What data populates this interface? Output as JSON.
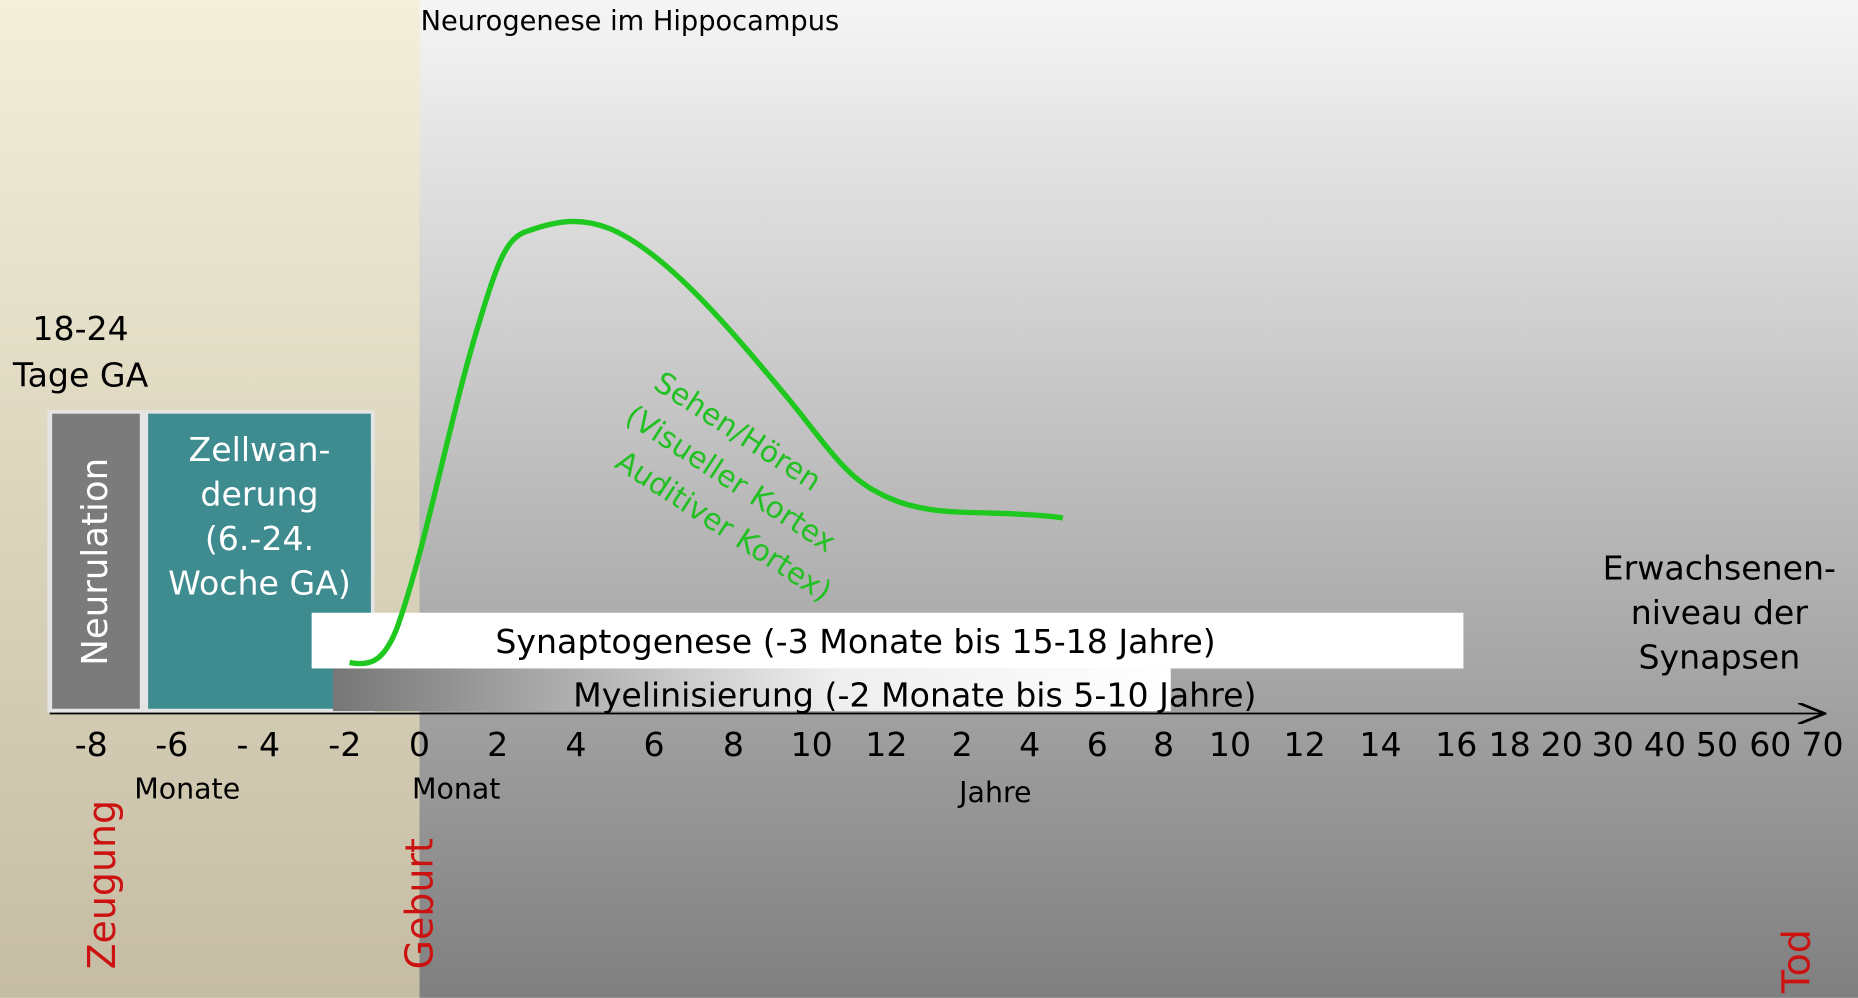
{
  "title": "Neurogenese im Hippocampus",
  "early_label": [
    "18-24",
    "Tage GA"
  ],
  "neurulation": "Neurulation",
  "cell_migration": [
    "Zellwan-",
    "derung",
    "(6.-24.",
    "Woche GA)"
  ],
  "curve_label": [
    "Sehen/Hören",
    "(Visueller Kortex",
    "Auditiver Kortex)"
  ],
  "synaptogenesis": "Synaptogenese (-3 Monate bis 15-18 Jahre)",
  "myelination": "Myelinisierung (-2 Monate bis 5-10 Jahre)",
  "adult_label": [
    "Erwachsenen-",
    "niveau der",
    "Synapsen"
  ],
  "axis_ticks": [
    "-8",
    "-6",
    "- 4",
    "-2",
    "0",
    "2",
    "4",
    "6",
    "8",
    "10",
    "12",
    "2",
    "4",
    "6",
    "8",
    "10",
    "12",
    "14",
    "16",
    "18",
    "20",
    "30",
    "40",
    "50",
    "60",
    "70"
  ],
  "units": {
    "months_before": "Monate",
    "month": "Monat",
    "years": "Jahre"
  },
  "events": {
    "conception": "Zeugung",
    "birth": "Geburt",
    "death": "Tod"
  }
}
